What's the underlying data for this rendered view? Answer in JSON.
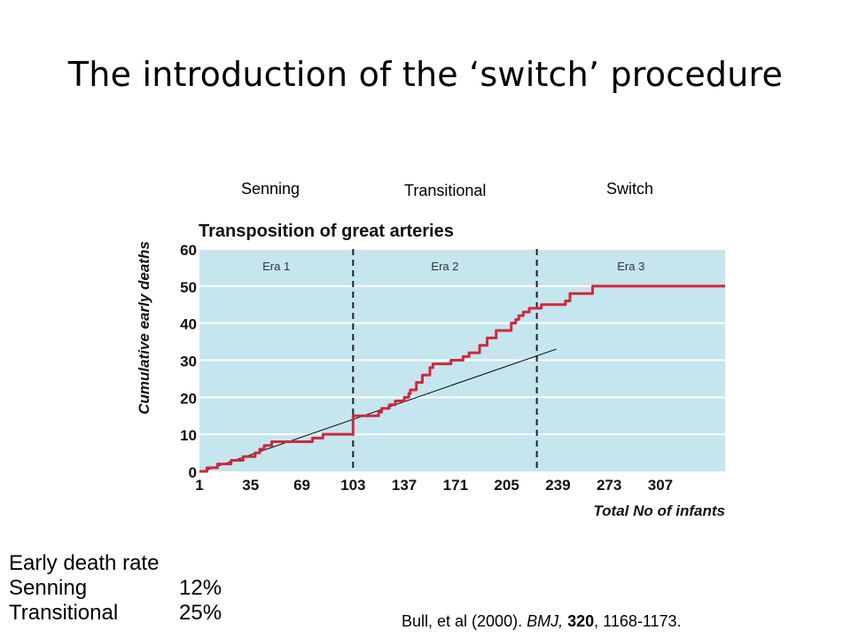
{
  "slide": {
    "title": "The introduction of the ‘switch’ procedure",
    "era_labels": [
      "Senning",
      "Transitional",
      "Switch"
    ],
    "rates_heading": "Early death rate",
    "rates": [
      {
        "label": "Senning",
        "value": "12%"
      },
      {
        "label": "Transitional",
        "value": "25%"
      }
    ],
    "citation": {
      "authors": "Bull, et al (2000). ",
      "journal": "BMJ,",
      "space": " ",
      "volume": "320",
      "pages": ", 1168-1173."
    }
  },
  "colors": {
    "plot_background": "#c5e5ef",
    "grid": "#ffffff",
    "curve": "#d0283c",
    "reference_line": "#000000",
    "divider": "#222222"
  },
  "chart_data": {
    "type": "line",
    "title": "Transposition of great arteries",
    "xlabel": "Total No of infants",
    "ylabel": "Cumulative early deaths",
    "xlim": [
      1,
      350
    ],
    "ylim": [
      0,
      60
    ],
    "xticks": [
      1,
      35,
      69,
      103,
      137,
      171,
      205,
      239,
      273,
      307
    ],
    "yticks": [
      0,
      10,
      20,
      30,
      40,
      50,
      60
    ],
    "grid": "horizontal",
    "eras": [
      {
        "label": "Era 1",
        "from": 1,
        "to": 103
      },
      {
        "label": "Era 2",
        "from": 103,
        "to": 225
      },
      {
        "label": "Era 3",
        "from": 225,
        "to": 350
      }
    ],
    "dividers": [
      103,
      225
    ],
    "series": [
      {
        "name": "",
        "style": "step",
        "x": [
          1,
          6,
          13,
          22,
          30,
          38,
          41,
          44,
          49,
          54,
          70,
          76,
          83,
          96,
          103,
          106,
          117,
          120,
          122,
          127,
          131,
          137,
          140,
          141,
          145,
          149,
          154,
          156,
          160,
          164,
          167,
          168,
          172,
          176,
          180,
          184,
          187,
          192,
          195,
          198,
          205,
          208,
          211,
          213,
          216,
          220,
          222,
          228,
          239,
          243,
          244,
          247,
          255,
          262,
          350
        ],
        "y": [
          0,
          1,
          2,
          3,
          4,
          5,
          6,
          7,
          8,
          8,
          8,
          9,
          10,
          10,
          15,
          15,
          15,
          16,
          17,
          18,
          19,
          20,
          21,
          22,
          24,
          26,
          28,
          29,
          29,
          29,
          29,
          30,
          30,
          31,
          32,
          32,
          34,
          36,
          36,
          38,
          38,
          40,
          41,
          42,
          43,
          44,
          44,
          45,
          45,
          45,
          46,
          48,
          48,
          50,
          50
        ]
      },
      {
        "name": "",
        "style": "reference",
        "x": [
          3,
          238
        ],
        "y": [
          0,
          33
        ]
      }
    ]
  }
}
